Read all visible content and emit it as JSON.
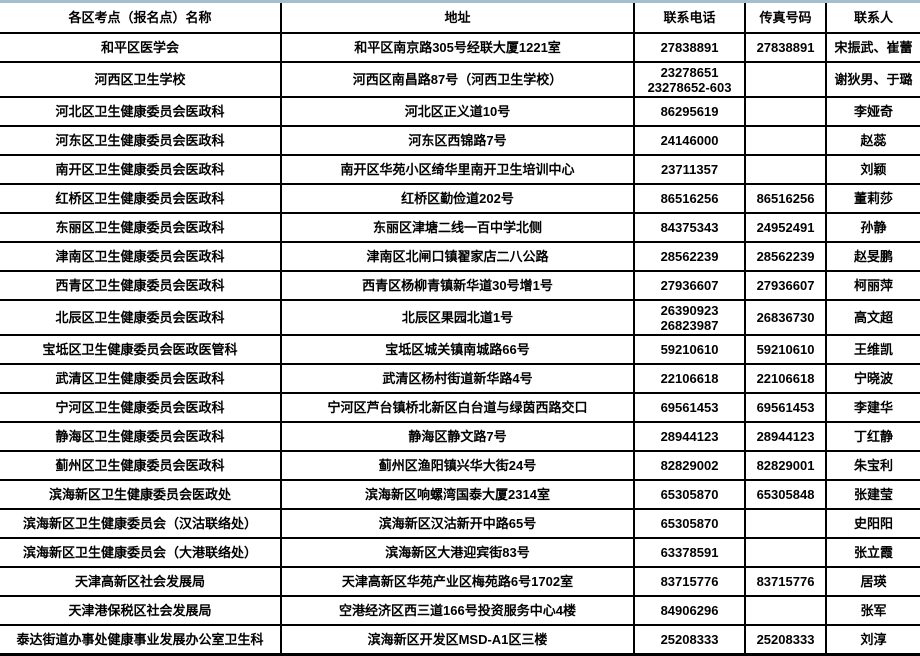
{
  "table": {
    "header": {
      "columns": [
        "各区考点（报名点）名称",
        "地址",
        "联系电话",
        "传真号码",
        "联系人"
      ]
    },
    "rows": [
      {
        "name": "和平区医学会",
        "address": "和平区南京路305号经联大厦1221室",
        "phone": "27838891",
        "fax": "27838891",
        "contact": "宋振武、崔蕾",
        "tall": false
      },
      {
        "name": "河西区卫生学校",
        "address": "河西区南昌路87号（河西卫生学校）",
        "phone": "23278651\n23278652-603",
        "fax": "",
        "contact": "谢狄男、于璐",
        "tall": true
      },
      {
        "name": "河北区卫生健康委员会医政科",
        "address": "河北区正义道10号",
        "phone": "86295619",
        "fax": "",
        "contact": "李娅奇",
        "tall": false
      },
      {
        "name": "河东区卫生健康委员会医政科",
        "address": "河东区西锦路7号",
        "phone": "24146000",
        "fax": "",
        "contact": "赵蕊",
        "tall": false
      },
      {
        "name": "南开区卫生健康委员会医政科",
        "address": "南开区华苑小区绮华里南开卫生培训中心",
        "phone": "23711357",
        "fax": "",
        "contact": "刘颖",
        "tall": false
      },
      {
        "name": "红桥区卫生健康委员会医政科",
        "address": "红桥区勤俭道202号",
        "phone": "86516256",
        "fax": "86516256",
        "contact": "董莉莎",
        "tall": false
      },
      {
        "name": "东丽区卫生健康委员会医政科",
        "address": "东丽区津塘二线一百中学北侧",
        "phone": "84375343",
        "fax": "24952491",
        "contact": "孙静",
        "tall": false
      },
      {
        "name": "津南区卫生健康委员会医政科",
        "address": "津南区北闸口镇翟家店二八公路",
        "phone": "28562239",
        "fax": "28562239",
        "contact": "赵旻鹏",
        "tall": false
      },
      {
        "name": "西青区卫生健康委员会医政科",
        "address": "西青区杨柳青镇新华道30号增1号",
        "phone": "27936607",
        "fax": "27936607",
        "contact": "柯丽萍",
        "tall": false
      },
      {
        "name": "北辰区卫生健康委员会医政科",
        "address": "北辰区果园北道1号",
        "phone": "26390923\n26823987",
        "fax": "26836730",
        "contact": "高文超",
        "tall": true
      },
      {
        "name": "宝坻区卫生健康委员会医政医管科",
        "address": "宝坻区城关镇南城路66号",
        "phone": "59210610",
        "fax": "59210610",
        "contact": "王维凯",
        "tall": false
      },
      {
        "name": "武清区卫生健康委员会医政科",
        "address": "武清区杨村街道新华路4号",
        "phone": "22106618",
        "fax": "22106618",
        "contact": "宁晓波",
        "tall": false
      },
      {
        "name": "宁河区卫生健康委员会医政科",
        "address": "宁河区芦台镇桥北新区白台道与绿茵西路交口",
        "phone": "69561453",
        "fax": "69561453",
        "contact": "李建华",
        "tall": false
      },
      {
        "name": "静海区卫生健康委员会医政科",
        "address": "静海区静文路7号",
        "phone": "28944123",
        "fax": "28944123",
        "contact": "丁红静",
        "tall": false
      },
      {
        "name": "蓟州区卫生健康委员会医政科",
        "address": "蓟州区渔阳镇兴华大街24号",
        "phone": "82829002",
        "fax": "82829001",
        "contact": "朱宝利",
        "tall": false
      },
      {
        "name": "滨海新区卫生健康委员会医政处",
        "address": "滨海新区响螺湾国泰大厦2314室",
        "phone": "65305870",
        "fax": "65305848",
        "contact": "张建莹",
        "tall": false
      },
      {
        "name": "滨海新区卫生健康委员会（汉沽联络处）",
        "address": "滨海新区汉沽新开中路65号",
        "phone": "65305870",
        "fax": "",
        "contact": "史阳阳",
        "tall": false
      },
      {
        "name": "滨海新区卫生健康委员会（大港联络处）",
        "address": "滨海新区大港迎宾街83号",
        "phone": "63378591",
        "fax": "",
        "contact": "张立霞",
        "tall": false
      },
      {
        "name": "天津高新区社会发展局",
        "address": "天津高新区华苑产业区梅苑路6号1702室",
        "phone": "83715776",
        "fax": "83715776",
        "contact": "居瑛",
        "tall": false
      },
      {
        "name": "天津港保税区社会发展局",
        "address": "空港经济区西三道166号投资服务中心4楼",
        "phone": "84906296",
        "fax": "",
        "contact": "张军",
        "tall": false
      },
      {
        "name": "泰达街道办事处健康事业发展办公室卫生科",
        "address": "滨海新区开发区MSD-A1区三楼",
        "phone": "25208333",
        "fax": "25208333",
        "contact": "刘淳",
        "tall": false
      }
    ],
    "colors": {
      "top_strip": "#a9bcca",
      "border": "#000000",
      "text": "#000000",
      "background": "#ffffff"
    }
  }
}
